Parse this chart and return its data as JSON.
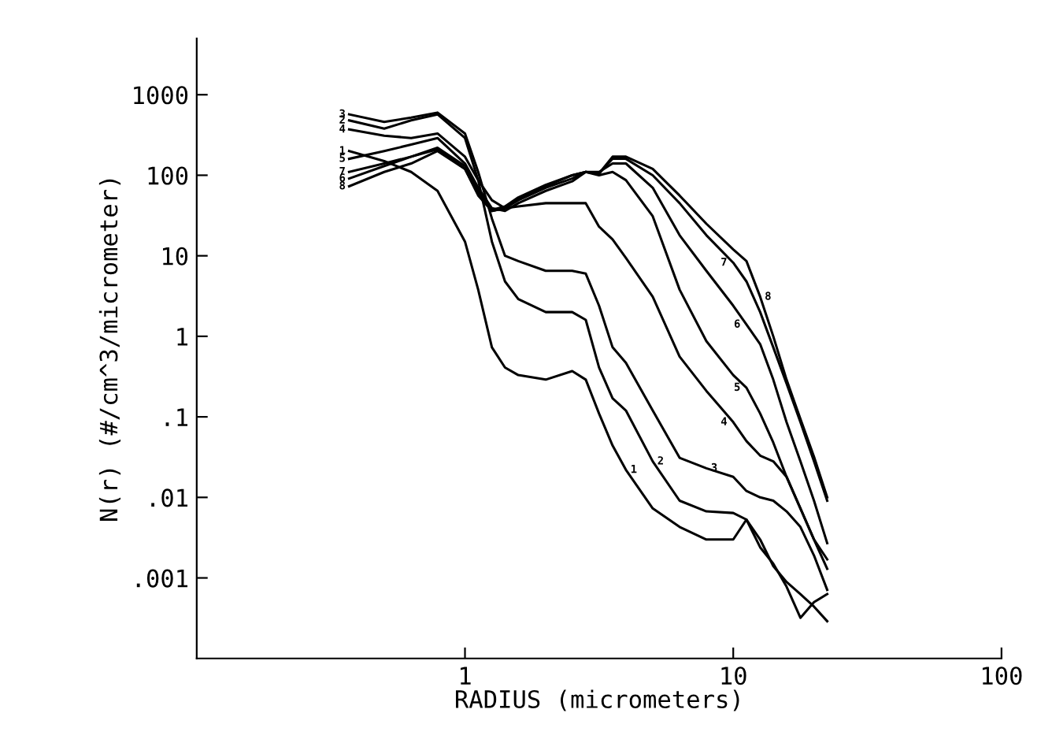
{
  "chart_data": {
    "type": "line",
    "xlabel": "RADIUS (micrometers)",
    "ylabel": "N(r) (#/cm^3/micrometer)",
    "log": "xy",
    "grid": false,
    "legend": false,
    "marker": "none",
    "line_style": "solid",
    "xlim": [
      0.1,
      100
    ],
    "xticks": [
      1,
      10,
      100
    ],
    "ylim": [
      0.0001,
      5000
    ],
    "yticks": [
      1000,
      100,
      10,
      1,
      {
        "value": 0.1,
        "label": ".1"
      },
      {
        "value": 0.01,
        "label": ".01"
      },
      {
        "value": 0.001,
        "label": ".001"
      }
    ],
    "x": [
      0.37,
      0.5,
      0.63,
      0.79,
      1.0,
      1.12,
      1.26,
      1.41,
      1.58,
      2.0,
      2.51,
      2.82,
      3.16,
      3.55,
      3.98,
      5.01,
      6.31,
      7.94,
      10,
      11.2,
      12.6,
      14.1,
      15.8,
      17.8,
      20,
      22.4
    ],
    "series": [
      {
        "name": "1",
        "color": "#000000",
        "values": [
          200,
          150,
          110,
          64,
          15,
          3.8,
          0.73,
          0.41,
          0.33,
          0.29,
          0.37,
          0.29,
          0.11,
          0.044,
          0.022,
          0.0073,
          0.0043,
          0.003,
          0.003,
          0.0053,
          0.0024,
          0.0015,
          0.00078,
          0.00032,
          0.0005,
          0.00063
        ]
      },
      {
        "name": "2",
        "color": "#000000",
        "values": [
          480,
          380,
          480,
          570,
          290,
          87,
          15,
          4.8,
          2.9,
          2.0,
          2.0,
          1.6,
          0.41,
          0.17,
          0.12,
          0.028,
          0.0091,
          0.0067,
          0.0064,
          0.0053,
          0.003,
          0.0014,
          0.00089,
          0.00063,
          0.00044,
          0.00029
        ]
      },
      {
        "name": "3",
        "color": "#000000",
        "values": [
          570,
          460,
          520,
          600,
          330,
          110,
          29,
          10,
          8.6,
          6.5,
          6.5,
          6.0,
          2.4,
          0.73,
          0.47,
          0.12,
          0.031,
          0.023,
          0.018,
          0.012,
          0.01,
          0.0091,
          0.0067,
          0.0043,
          0.0019,
          0.00071
        ]
      },
      {
        "name": "4",
        "color": "#000000",
        "values": [
          370,
          310,
          290,
          330,
          170,
          87,
          49,
          39,
          41,
          45,
          45,
          45,
          23,
          16,
          9.4,
          3.1,
          0.56,
          0.21,
          0.086,
          0.05,
          0.033,
          0.028,
          0.018,
          0.0073,
          0.003,
          0.0017
        ]
      },
      {
        "name": "5",
        "color": "#000000",
        "values": [
          160,
          200,
          240,
          290,
          140,
          70,
          39,
          36,
          45,
          64,
          84,
          110,
          100,
          110,
          87,
          31,
          3.8,
          0.87,
          0.33,
          0.23,
          0.11,
          0.048,
          0.018,
          0.0073,
          0.003,
          0.0013
        ]
      },
      {
        "name": "6",
        "color": "#000000",
        "values": [
          91,
          130,
          170,
          210,
          120,
          56,
          36,
          39,
          49,
          70,
          91,
          110,
          110,
          140,
          140,
          70,
          18,
          6.5,
          2.4,
          1.4,
          0.8,
          0.29,
          0.086,
          0.028,
          0.0091,
          0.0027
        ]
      },
      {
        "name": "7",
        "color": "#000000",
        "values": [
          110,
          140,
          170,
          220,
          130,
          64,
          37,
          41,
          53,
          76,
          100,
          110,
          105,
          160,
          160,
          100,
          45,
          18,
          8.2,
          4.8,
          2.0,
          0.73,
          0.26,
          0.086,
          0.028,
          0.0091
        ]
      },
      {
        "name": "8",
        "color": "#000000",
        "values": [
          73,
          110,
          140,
          200,
          120,
          58,
          36,
          39,
          51,
          73,
          100,
          110,
          105,
          170,
          170,
          120,
          56,
          25,
          12,
          8.6,
          3.1,
          1,
          0.29,
          0.094,
          0.032,
          0.01
        ]
      }
    ]
  }
}
